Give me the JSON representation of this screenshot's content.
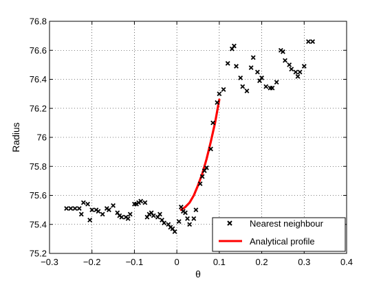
{
  "chart_data": {
    "type": "scatter",
    "xlabel": "θ",
    "ylabel": "Radius",
    "xlim": [
      -0.3,
      0.4
    ],
    "ylim": [
      75.2,
      76.8
    ],
    "xticks": [
      -0.3,
      -0.2,
      -0.1,
      0,
      0.1,
      0.2,
      0.3,
      0.4
    ],
    "yticks": [
      75.2,
      75.4,
      75.6,
      75.8,
      76,
      76.2,
      76.4,
      76.6,
      76.8
    ],
    "xtick_labels": [
      "−0.3",
      "−0.2",
      "−0.1",
      "0",
      "0.1",
      "0.2",
      "0.3",
      "0.4"
    ],
    "ytick_labels": [
      "75.2",
      "75.4",
      "75.6",
      "75.8",
      "76",
      "76.2",
      "76.4",
      "76.6",
      "76.8"
    ],
    "grid": true,
    "legend_position": "bottom-right",
    "series": [
      {
        "name": "Nearest neighbour",
        "kind": "scatter",
        "marker": "x",
        "color": "#000000",
        "points": [
          [
            -0.26,
            75.51
          ],
          [
            -0.25,
            75.51
          ],
          [
            -0.24,
            75.51
          ],
          [
            -0.23,
            75.51
          ],
          [
            -0.225,
            75.47
          ],
          [
            -0.22,
            75.55
          ],
          [
            -0.21,
            75.54
          ],
          [
            -0.205,
            75.43
          ],
          [
            -0.2,
            75.5
          ],
          [
            -0.19,
            75.5
          ],
          [
            -0.185,
            75.49
          ],
          [
            -0.175,
            75.47
          ],
          [
            -0.165,
            75.51
          ],
          [
            -0.16,
            75.5
          ],
          [
            -0.15,
            75.53
          ],
          [
            -0.14,
            75.48
          ],
          [
            -0.135,
            75.46
          ],
          [
            -0.13,
            75.45
          ],
          [
            -0.12,
            75.45
          ],
          [
            -0.115,
            75.44
          ],
          [
            -0.11,
            75.47
          ],
          [
            -0.1,
            75.54
          ],
          [
            -0.095,
            75.54
          ],
          [
            -0.09,
            75.55
          ],
          [
            -0.085,
            75.56
          ],
          [
            -0.075,
            75.55
          ],
          [
            -0.07,
            75.45
          ],
          [
            -0.065,
            75.47
          ],
          [
            -0.06,
            75.48
          ],
          [
            -0.055,
            75.46
          ],
          [
            -0.045,
            75.45
          ],
          [
            -0.04,
            75.47
          ],
          [
            -0.035,
            75.43
          ],
          [
            -0.03,
            75.41
          ],
          [
            -0.02,
            75.4
          ],
          [
            -0.015,
            75.38
          ],
          [
            -0.01,
            75.37
          ],
          [
            -0.005,
            75.35
          ],
          [
            0.005,
            75.42
          ],
          [
            0.01,
            75.52
          ],
          [
            0.015,
            75.49
          ],
          [
            0.02,
            75.48
          ],
          [
            0.025,
            75.44
          ],
          [
            0.03,
            75.4
          ],
          [
            0.04,
            75.44
          ],
          [
            0.045,
            75.5
          ],
          [
            0.055,
            75.68
          ],
          [
            0.06,
            75.73
          ],
          [
            0.065,
            75.77
          ],
          [
            0.07,
            75.79
          ],
          [
            0.08,
            75.92
          ],
          [
            0.085,
            76.1
          ],
          [
            0.095,
            76.24
          ],
          [
            0.1,
            76.3
          ],
          [
            0.11,
            76.33
          ],
          [
            0.12,
            76.51
          ],
          [
            0.13,
            76.61
          ],
          [
            0.135,
            76.63
          ],
          [
            0.14,
            76.49
          ],
          [
            0.15,
            76.41
          ],
          [
            0.155,
            76.35
          ],
          [
            0.165,
            76.32
          ],
          [
            0.175,
            76.48
          ],
          [
            0.18,
            76.55
          ],
          [
            0.19,
            76.45
          ],
          [
            0.195,
            76.39
          ],
          [
            0.2,
            76.41
          ],
          [
            0.21,
            76.35
          ],
          [
            0.22,
            76.34
          ],
          [
            0.225,
            76.34
          ],
          [
            0.235,
            76.38
          ],
          [
            0.245,
            76.6
          ],
          [
            0.25,
            76.59
          ],
          [
            0.255,
            76.53
          ],
          [
            0.265,
            76.5
          ],
          [
            0.27,
            76.47
          ],
          [
            0.28,
            76.45
          ],
          [
            0.285,
            76.42
          ],
          [
            0.29,
            76.45
          ],
          [
            0.3,
            76.49
          ],
          [
            0.31,
            76.66
          ],
          [
            0.32,
            76.66
          ]
        ]
      },
      {
        "name": "Analytical profile",
        "kind": "line",
        "color": "#ff0000",
        "points": [
          [
            0.01,
            75.5
          ],
          [
            0.02,
            75.52
          ],
          [
            0.03,
            75.55
          ],
          [
            0.04,
            75.6
          ],
          [
            0.05,
            75.67
          ],
          [
            0.06,
            75.75
          ],
          [
            0.07,
            75.85
          ],
          [
            0.08,
            75.97
          ],
          [
            0.09,
            76.1
          ],
          [
            0.1,
            76.26
          ]
        ]
      }
    ]
  }
}
